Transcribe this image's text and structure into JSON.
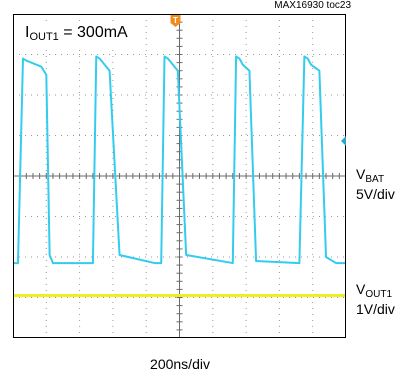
{
  "figure_id": "MAX16930 toc23",
  "condition": {
    "prefix": "I",
    "sub": "OUT1",
    "suffix": " = 300mA"
  },
  "channels": {
    "vbat": {
      "prefix": "V",
      "sub": "BAT",
      "scale": "5V/div",
      "color": "#33ccee"
    },
    "vout": {
      "prefix": "V",
      "sub": "OUT1",
      "scale": "1V/div",
      "color": "#eeee22"
    }
  },
  "x_scale": "200ns/div",
  "trigger_marker": {
    "label": "T",
    "color": "#f08c1e"
  },
  "chart_data": {
    "type": "line",
    "grid": true,
    "x_divisions": 10,
    "y_divisions": 8,
    "xlabel": "",
    "ylabel": "",
    "series": [
      {
        "channel": "vbat",
        "x_div": [
          0.0,
          0.15,
          0.3,
          0.4,
          0.85,
          1.0,
          1.1,
          1.2,
          1.3,
          2.0,
          2.25,
          2.4,
          2.5,
          2.6,
          2.75,
          2.9,
          3.2,
          4.25,
          4.45,
          4.55,
          4.65,
          4.8,
          4.95,
          5.2,
          6.6,
          6.7,
          6.8,
          6.9,
          7.1,
          7.3,
          8.6,
          8.75,
          8.85,
          8.95,
          9.2,
          9.4,
          9.7,
          10.0
        ],
        "y_div": [
          -2.15,
          -2.15,
          2.9,
          2.85,
          2.7,
          2.5,
          -1.95,
          -2.15,
          -2.15,
          -2.15,
          -2.15,
          -2.15,
          2.95,
          2.9,
          2.75,
          2.6,
          -1.95,
          -2.15,
          -2.15,
          2.95,
          2.9,
          2.75,
          2.6,
          -1.95,
          -2.15,
          2.95,
          2.9,
          2.75,
          2.6,
          -2.1,
          -2.15,
          2.95,
          2.9,
          2.75,
          2.6,
          -2.0,
          -2.15,
          -2.15
        ]
      },
      {
        "channel": "vout",
        "x_div": [
          0.0,
          10.0
        ],
        "y_div": [
          -2.95,
          -2.95
        ]
      }
    ]
  }
}
